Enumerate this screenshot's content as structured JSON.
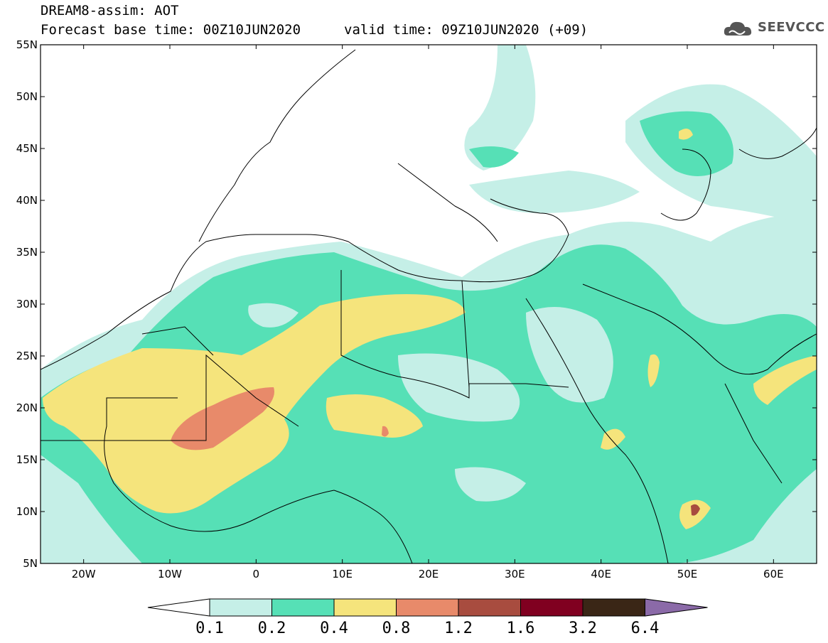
{
  "header": {
    "title_line1": "DREAM8-assim: AOT",
    "title_line2": "Forecast base time: 00Z10JUN2020",
    "title_line3": "valid time: 09Z10JUN2020 (+09)",
    "logo_text": "SEEVCCC"
  },
  "map": {
    "lat_labels": [
      "55N",
      "50N",
      "45N",
      "40N",
      "35N",
      "30N",
      "25N",
      "20N",
      "15N",
      "10N",
      "5N"
    ],
    "lon_labels": [
      "20W",
      "10W",
      "0",
      "10E",
      "20E",
      "30E",
      "40E",
      "50E",
      "60E"
    ],
    "lat_range": [
      5,
      55
    ],
    "lon_range": [
      -25,
      65
    ]
  },
  "colorbar": {
    "labels": [
      "0.1",
      "0.2",
      "0.4",
      "0.8",
      "1.2",
      "1.6",
      "3.2",
      "6.4"
    ],
    "colors": [
      "#c5efe7",
      "#56e0b6",
      "#f5e47c",
      "#e88a6a",
      "#a84c3f",
      "#800020",
      "#3a2616",
      "#8b6aa8"
    ]
  }
}
